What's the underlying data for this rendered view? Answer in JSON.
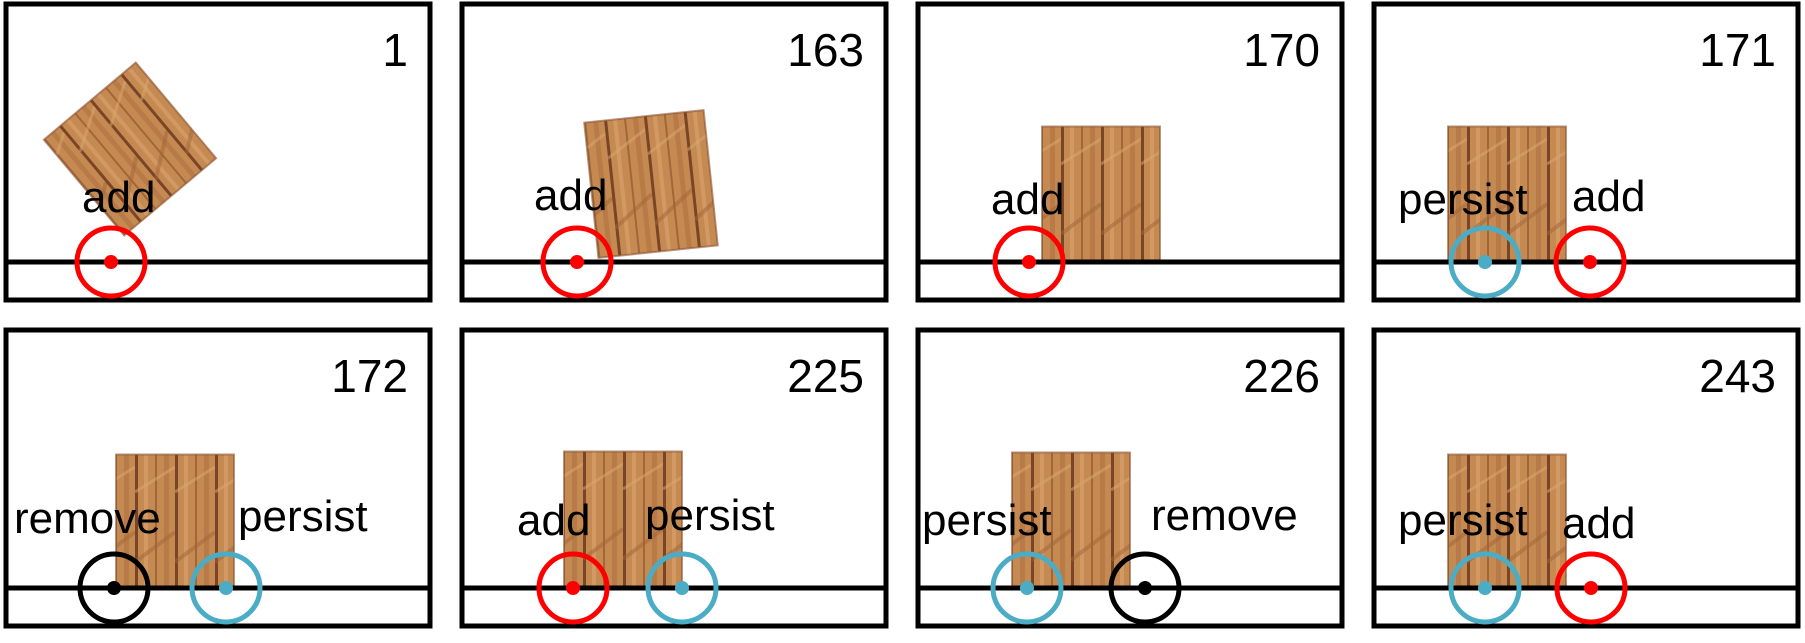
{
  "colors": {
    "add": "#ff0000",
    "persist": "#4bacc6",
    "remove": "#000000",
    "wood_light": "#c9894f",
    "wood_dark": "#8a5230"
  },
  "legend_words": [
    "add",
    "persist",
    "remove"
  ],
  "frames": [
    {
      "frame": "1",
      "contacts": [
        {
          "type": "add",
          "label": "add"
        }
      ]
    },
    {
      "frame": "163",
      "contacts": [
        {
          "type": "add",
          "label": "add"
        }
      ]
    },
    {
      "frame": "170",
      "contacts": [
        {
          "type": "add",
          "label": "add"
        }
      ]
    },
    {
      "frame": "171",
      "contacts": [
        {
          "type": "persist",
          "label": "persist"
        },
        {
          "type": "add",
          "label": "add"
        }
      ]
    },
    {
      "frame": "172",
      "contacts": [
        {
          "type": "remove",
          "label": "remove"
        },
        {
          "type": "persist",
          "label": "persist"
        }
      ]
    },
    {
      "frame": "225",
      "contacts": [
        {
          "type": "add",
          "label": "add"
        },
        {
          "type": "persist",
          "label": "persist"
        }
      ]
    },
    {
      "frame": "226",
      "contacts": [
        {
          "type": "persist",
          "label": "persist"
        },
        {
          "type": "remove",
          "label": "remove"
        }
      ]
    },
    {
      "frame": "243",
      "contacts": [
        {
          "type": "persist",
          "label": "persist"
        },
        {
          "type": "add",
          "label": "add"
        }
      ]
    }
  ]
}
